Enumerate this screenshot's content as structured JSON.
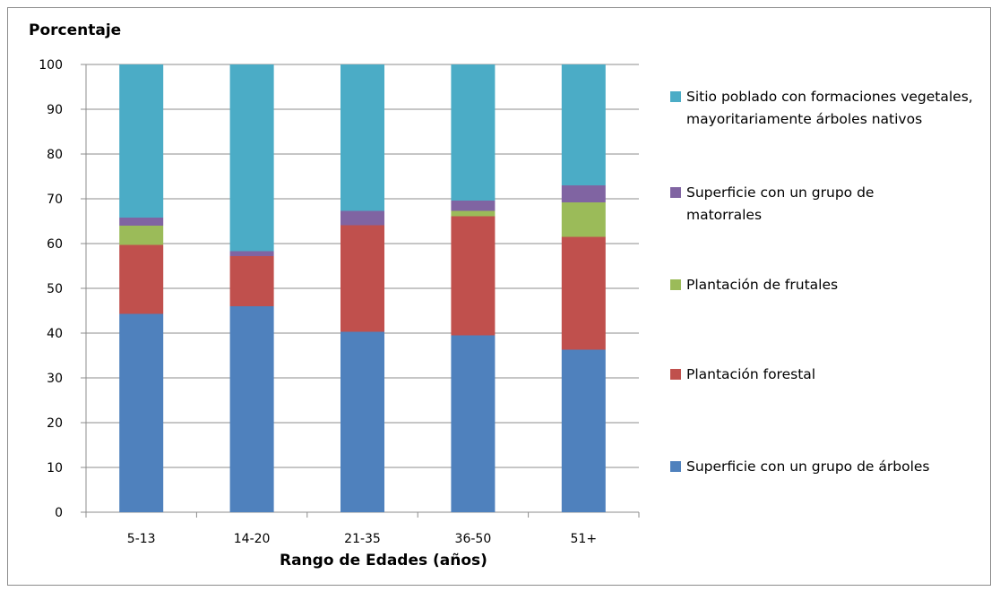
{
  "chart_data": {
    "type": "bar",
    "stacked": true,
    "ylabel": "Porcentaje",
    "xlabel": "Rango de Edades (años)",
    "ylim": [
      0,
      100
    ],
    "yticks": [
      "0",
      "10",
      "20",
      "30",
      "40",
      "50",
      "60",
      "70",
      "80",
      "90",
      "100"
    ],
    "categories": [
      "5-13",
      "14-20",
      "21-35",
      "36-50",
      "51+"
    ],
    "grid": true,
    "legend_position": "right",
    "series": [
      {
        "name": "Superficie con un grupo de árboles",
        "color": "#4f81bd",
        "values": [
          44.3,
          46.0,
          40.3,
          39.5,
          36.3
        ]
      },
      {
        "name": "Plantación forestal",
        "color": "#c0504d",
        "values": [
          15.4,
          11.2,
          23.8,
          26.6,
          25.2
        ]
      },
      {
        "name": "Plantación de frutales",
        "color": "#9bbb59",
        "values": [
          4.3,
          0.0,
          0.0,
          1.2,
          7.7
        ]
      },
      {
        "name": "Superficie con un grupo de matorrales",
        "color": "#8064a2",
        "values": [
          1.8,
          1.1,
          3.2,
          2.3,
          3.8
        ]
      },
      {
        "name": "Sitio poblado con formaciones vegetales, mayoritariamente árboles nativos",
        "color": "#4bacc6",
        "values": [
          34.2,
          41.7,
          32.7,
          30.4,
          27.0
        ]
      }
    ]
  }
}
